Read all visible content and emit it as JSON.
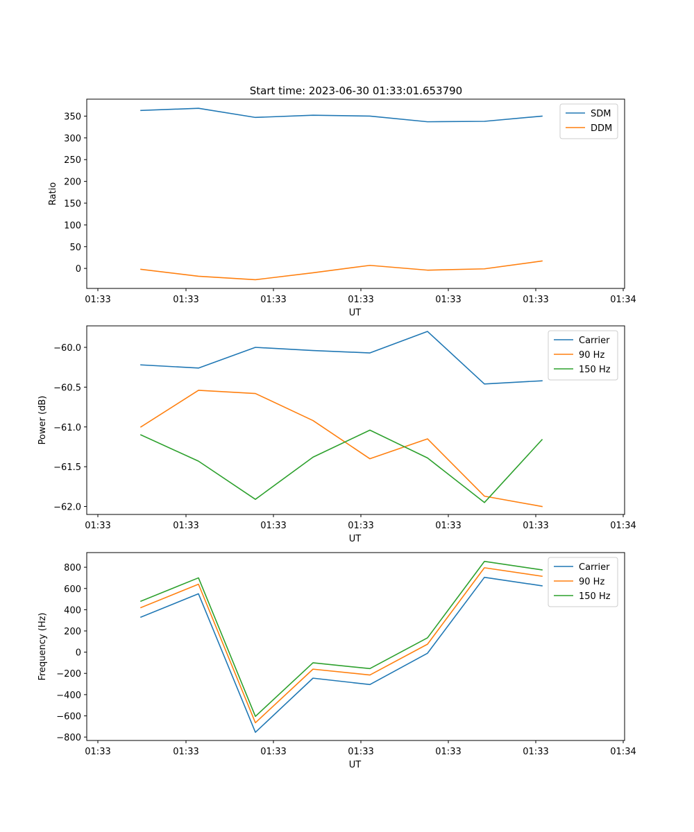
{
  "figure_title": "Start time: 2023-06-30 01:33:01.653790",
  "colors": {
    "blue": "#1f77b4",
    "orange": "#ff7f0e",
    "green": "#2ca02c"
  },
  "chart_data": [
    {
      "type": "line",
      "title": "Start time: 2023-06-30 01:33:01.653790",
      "xlabel": "UT",
      "ylabel": "Ratio",
      "x_tick_labels": [
        "01:33",
        "01:33",
        "01:33",
        "01:33",
        "01:33",
        "01:33",
        "01:34"
      ],
      "y_ticks": [
        0,
        50,
        100,
        150,
        200,
        250,
        300,
        350
      ],
      "ylim": [
        -46,
        389
      ],
      "legend": "top-right",
      "series": [
        {
          "name": "SDM",
          "color": "#1f77b4",
          "values": [
            363,
            368,
            347,
            352,
            350,
            337,
            338,
            350
          ]
        },
        {
          "name": "DDM",
          "color": "#ff7f0e",
          "values": [
            -2,
            -18,
            -26,
            -10,
            7,
            -4,
            -1,
            17
          ]
        }
      ]
    },
    {
      "type": "line",
      "xlabel": "UT",
      "ylabel": "Power (dB)",
      "x_tick_labels": [
        "01:33",
        "01:33",
        "01:33",
        "01:33",
        "01:33",
        "01:33",
        "01:34"
      ],
      "y_ticks": [
        -62.0,
        -61.5,
        -61.0,
        -60.5,
        -60.0
      ],
      "y_tick_labels": [
        "−62.0",
        "−61.5",
        "−61.0",
        "−60.5",
        "−60.0"
      ],
      "ylim": [
        -62.1,
        -59.73
      ],
      "legend": "top-right",
      "series": [
        {
          "name": "Carrier",
          "color": "#1f77b4",
          "values": [
            -60.22,
            -60.26,
            -60.0,
            -60.04,
            -60.07,
            -59.8,
            -60.46,
            -60.42
          ]
        },
        {
          "name": "90 Hz",
          "color": "#ff7f0e",
          "values": [
            -61.0,
            -60.54,
            -60.58,
            -60.92,
            -61.4,
            -61.15,
            -61.87,
            -62.0
          ]
        },
        {
          "name": "150 Hz",
          "color": "#2ca02c",
          "values": [
            -61.1,
            -61.43,
            -61.91,
            -61.38,
            -61.04,
            -61.39,
            -61.95,
            -61.16
          ]
        }
      ]
    },
    {
      "type": "line",
      "xlabel": "UT",
      "ylabel": "Frequency (Hz)",
      "x_tick_labels": [
        "01:33",
        "01:33",
        "01:33",
        "01:33",
        "01:33",
        "01:33",
        "01:34"
      ],
      "y_ticks": [
        -800,
        -600,
        -400,
        -200,
        0,
        200,
        400,
        600,
        800
      ],
      "y_tick_labels": [
        "−800",
        "−600",
        "−400",
        "−200",
        "0",
        "200",
        "400",
        "600",
        "800"
      ],
      "ylim": [
        -832,
        938
      ],
      "legend": "top-right",
      "series": [
        {
          "name": "Carrier",
          "color": "#1f77b4",
          "values": [
            330,
            550,
            -755,
            -245,
            -305,
            -10,
            705,
            625
          ]
        },
        {
          "name": "90 Hz",
          "color": "#ff7f0e",
          "values": [
            420,
            640,
            -665,
            -160,
            -215,
            75,
            795,
            715
          ]
        },
        {
          "name": "150 Hz",
          "color": "#2ca02c",
          "values": [
            480,
            700,
            -605,
            -100,
            -155,
            135,
            855,
            775
          ]
        }
      ]
    }
  ]
}
